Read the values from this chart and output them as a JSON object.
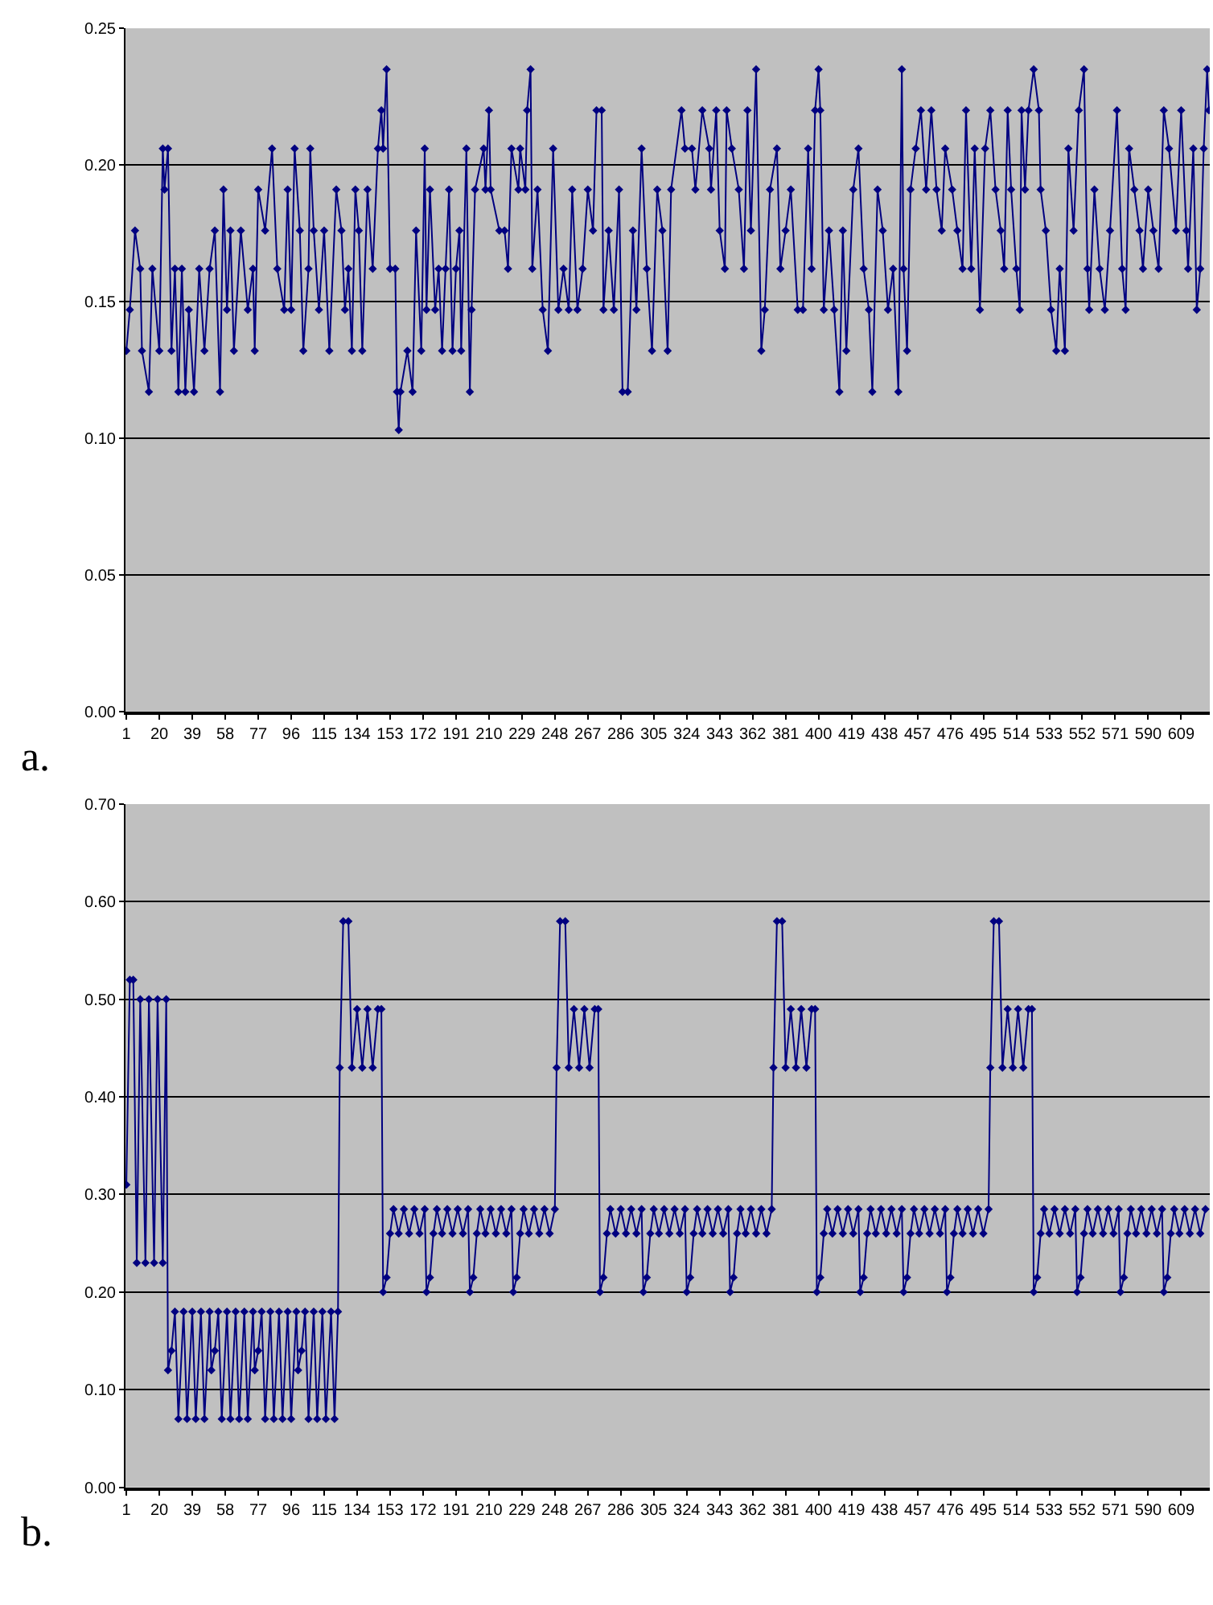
{
  "chart_data": [
    {
      "type": "line",
      "marker": "diamond",
      "grid": "y",
      "annotations": [
        "a."
      ],
      "xlim": [
        0.5,
        625.5
      ],
      "xticks": [
        1,
        20,
        39,
        58,
        77,
        96,
        115,
        134,
        153,
        172,
        191,
        210,
        229,
        248,
        267,
        286,
        305,
        324,
        343,
        362,
        381,
        400,
        419,
        438,
        457,
        476,
        495,
        514,
        533,
        552,
        571,
        590,
        609
      ],
      "ylim": [
        0,
        0.25
      ],
      "yticks": [
        {
          "value": 0,
          "label": "0.00"
        },
        {
          "value": 0.05,
          "label": "0.05"
        },
        {
          "value": 0.1,
          "label": "0.10"
        },
        {
          "value": 0.15,
          "label": "0.15"
        },
        {
          "value": 0.2,
          "label": "0.20"
        },
        {
          "value": 0.25,
          "label": "0.25"
        }
      ],
      "x": [
        1,
        3,
        6,
        9,
        10,
        14,
        16,
        20,
        22,
        23,
        25,
        27,
        29,
        31,
        33,
        35,
        37,
        40,
        43,
        46,
        49,
        52,
        55,
        57,
        59,
        61,
        63,
        67,
        71,
        74,
        75,
        77,
        81,
        85,
        88,
        92,
        94,
        96,
        98,
        101,
        103,
        106,
        107,
        109,
        112,
        115,
        118,
        122,
        125,
        127,
        129,
        131,
        133,
        135,
        137,
        140,
        143,
        146,
        148,
        149,
        151,
        153,
        156,
        157,
        158,
        159,
        163,
        166,
        168,
        171,
        173,
        174,
        176,
        179,
        181,
        183,
        185,
        187,
        189,
        191,
        193,
        194,
        197,
        199,
        200,
        202,
        207,
        208,
        210,
        211,
        216,
        219,
        221,
        223,
        227,
        228,
        231,
        232,
        234,
        235,
        238,
        241,
        244,
        247,
        250,
        253,
        256,
        258,
        261,
        264,
        267,
        270,
        272,
        275,
        276,
        279,
        282,
        285,
        287,
        290,
        293,
        295,
        298,
        301,
        304,
        307,
        310,
        313,
        315,
        321,
        323,
        327,
        329,
        333,
        337,
        338,
        341,
        343,
        346,
        347,
        350,
        354,
        357,
        359,
        361,
        364,
        367,
        369,
        372,
        376,
        378,
        381,
        384,
        388,
        391,
        394,
        396,
        398,
        400,
        401,
        403,
        406,
        409,
        412,
        414,
        416,
        420,
        423,
        426,
        429,
        431,
        434,
        437,
        440,
        443,
        446,
        448,
        449,
        451,
        453,
        456,
        459,
        462,
        465,
        468,
        471,
        473,
        477,
        480,
        483,
        485,
        488,
        490,
        493,
        496,
        499,
        502,
        505,
        507,
        509,
        511,
        514,
        516,
        517,
        519,
        521,
        524,
        527,
        528,
        531,
        534,
        537,
        539,
        542,
        544,
        547,
        550,
        553,
        555,
        556,
        559,
        562,
        565,
        568,
        572,
        575,
        577,
        579,
        582,
        585,
        587,
        590,
        593,
        596,
        599,
        602,
        606,
        609,
        612,
        613,
        616,
        618,
        620,
        622,
        624,
        625
      ],
      "series": [
        {
          "color": "#000080",
          "values": [
            0.132,
            0.147,
            0.176,
            0.162,
            0.132,
            0.117,
            0.162,
            0.132,
            0.206,
            0.191,
            0.206,
            0.132,
            0.162,
            0.117,
            0.162,
            0.117,
            0.147,
            0.117,
            0.162,
            0.132,
            0.162,
            0.176,
            0.117,
            0.191,
            0.147,
            0.176,
            0.132,
            0.176,
            0.147,
            0.162,
            0.132,
            0.191,
            0.176,
            0.206,
            0.162,
            0.147,
            0.191,
            0.147,
            0.206,
            0.176,
            0.132,
            0.162,
            0.206,
            0.176,
            0.147,
            0.176,
            0.132,
            0.191,
            0.176,
            0.147,
            0.162,
            0.132,
            0.191,
            0.176,
            0.132,
            0.191,
            0.162,
            0.206,
            0.22,
            0.206,
            0.235,
            0.162,
            0.162,
            0.117,
            0.103,
            0.117,
            0.132,
            0.117,
            0.176,
            0.132,
            0.206,
            0.147,
            0.191,
            0.147,
            0.162,
            0.132,
            0.162,
            0.191,
            0.132,
            0.162,
            0.176,
            0.132,
            0.206,
            0.117,
            0.147,
            0.191,
            0.206,
            0.191,
            0.22,
            0.191,
            0.176,
            0.176,
            0.162,
            0.206,
            0.191,
            0.206,
            0.191,
            0.22,
            0.235,
            0.162,
            0.191,
            0.147,
            0.132,
            0.206,
            0.147,
            0.162,
            0.147,
            0.191,
            0.147,
            0.162,
            0.191,
            0.176,
            0.22,
            0.22,
            0.147,
            0.176,
            0.147,
            0.191,
            0.117,
            0.117,
            0.176,
            0.147,
            0.206,
            0.162,
            0.132,
            0.191,
            0.176,
            0.132,
            0.191,
            0.22,
            0.206,
            0.206,
            0.191,
            0.22,
            0.206,
            0.191,
            0.22,
            0.176,
            0.162,
            0.22,
            0.206,
            0.191,
            0.162,
            0.22,
            0.176,
            0.235,
            0.132,
            0.147,
            0.191,
            0.206,
            0.162,
            0.176,
            0.191,
            0.147,
            0.147,
            0.206,
            0.162,
            0.22,
            0.235,
            0.22,
            0.147,
            0.176,
            0.147,
            0.117,
            0.176,
            0.132,
            0.191,
            0.206,
            0.162,
            0.147,
            0.117,
            0.191,
            0.176,
            0.147,
            0.162,
            0.117,
            0.235,
            0.162,
            0.132,
            0.191,
            0.206,
            0.22,
            0.191,
            0.22,
            0.191,
            0.176,
            0.206,
            0.191,
            0.176,
            0.162,
            0.22,
            0.162,
            0.206,
            0.147,
            0.206,
            0.22,
            0.191,
            0.176,
            0.162,
            0.22,
            0.191,
            0.162,
            0.147,
            0.22,
            0.191,
            0.22,
            0.235,
            0.22,
            0.191,
            0.176,
            0.147,
            0.132,
            0.162,
            0.132,
            0.206,
            0.176,
            0.22,
            0.235,
            0.162,
            0.147,
            0.191,
            0.162,
            0.147,
            0.176,
            0.22,
            0.162,
            0.147,
            0.206,
            0.191,
            0.176,
            0.162,
            0.191,
            0.176,
            0.162,
            0.22,
            0.206,
            0.176,
            0.22,
            0.176,
            0.162,
            0.206,
            0.147,
            0.162,
            0.206,
            0.235,
            0.22
          ]
        }
      ]
    },
    {
      "type": "line",
      "marker": "diamond",
      "grid": "y",
      "annotations": [
        "b."
      ],
      "xlim": [
        0.5,
        625.5
      ],
      "xticks": [
        1,
        20,
        39,
        58,
        77,
        96,
        115,
        134,
        153,
        172,
        191,
        210,
        229,
        248,
        267,
        286,
        305,
        324,
        343,
        362,
        381,
        400,
        419,
        438,
        457,
        476,
        495,
        514,
        533,
        552,
        571,
        590,
        609
      ],
      "ylim": [
        0,
        0.7
      ],
      "yticks": [
        {
          "value": 0,
          "label": "0.00"
        },
        {
          "value": 0.1,
          "label": "0.10"
        },
        {
          "value": 0.2,
          "label": "0.20"
        },
        {
          "value": 0.3,
          "label": "0.30"
        },
        {
          "value": 0.4,
          "label": "0.40"
        },
        {
          "value": 0.5,
          "label": "0.50"
        },
        {
          "value": 0.6,
          "label": "0.60"
        },
        {
          "value": 0.7,
          "label": "0.70"
        }
      ],
      "x": [
        1,
        3,
        5,
        7,
        9,
        12,
        14,
        17,
        19,
        22,
        24,
        25,
        27,
        29,
        31,
        34,
        36,
        39,
        41,
        44,
        46,
        49,
        50,
        52,
        54,
        56,
        59,
        61,
        64,
        66,
        69,
        71,
        74,
        75,
        77,
        79,
        81,
        84,
        86,
        89,
        91,
        94,
        96,
        99,
        100,
        102,
        104,
        106,
        109,
        111,
        114,
        116,
        119,
        121,
        123,
        124,
        126,
        129,
        131,
        134,
        137,
        140,
        143,
        146,
        148,
        149,
        151,
        153,
        155,
        158,
        161,
        164,
        167,
        170,
        173,
        174,
        176,
        178,
        180,
        183,
        186,
        189,
        192,
        195,
        198,
        199,
        201,
        203,
        205,
        208,
        211,
        214,
        217,
        220,
        223,
        224,
        226,
        228,
        230,
        233,
        236,
        239,
        242,
        245,
        248,
        249,
        251,
        254,
        256,
        259,
        262,
        265,
        268,
        271,
        273,
        274,
        276,
        278,
        280,
        283,
        286,
        289,
        292,
        295,
        298,
        299,
        301,
        303,
        305,
        308,
        311,
        314,
        317,
        320,
        323,
        324,
        326,
        328,
        330,
        333,
        336,
        339,
        342,
        345,
        348,
        349,
        351,
        353,
        355,
        358,
        361,
        364,
        367,
        370,
        373,
        374,
        376,
        379,
        381,
        384,
        387,
        390,
        393,
        396,
        398,
        399,
        401,
        403,
        405,
        408,
        411,
        414,
        417,
        420,
        423,
        424,
        426,
        428,
        430,
        433,
        436,
        439,
        442,
        445,
        448,
        449,
        451,
        453,
        455,
        458,
        461,
        464,
        467,
        470,
        473,
        474,
        476,
        478,
        480,
        483,
        486,
        489,
        492,
        495,
        498,
        499,
        501,
        504,
        506,
        509,
        512,
        515,
        518,
        521,
        523,
        524,
        526,
        528,
        530,
        533,
        536,
        539,
        542,
        545,
        548,
        549,
        551,
        553,
        555,
        558,
        561,
        564,
        567,
        570,
        573,
        574,
        576,
        578,
        580,
        583,
        586,
        589,
        592,
        595,
        598,
        599,
        601,
        603,
        605,
        608,
        611,
        614,
        617,
        620,
        623
      ],
      "series": [
        {
          "color": "#000080",
          "values": [
            0.31,
            0.52,
            0.52,
            0.23,
            0.5,
            0.23,
            0.5,
            0.23,
            0.5,
            0.23,
            0.5,
            0.12,
            0.14,
            0.18,
            0.07,
            0.18,
            0.07,
            0.18,
            0.07,
            0.18,
            0.07,
            0.18,
            0.12,
            0.14,
            0.18,
            0.07,
            0.18,
            0.07,
            0.18,
            0.07,
            0.18,
            0.07,
            0.18,
            0.12,
            0.14,
            0.18,
            0.07,
            0.18,
            0.07,
            0.18,
            0.07,
            0.18,
            0.07,
            0.18,
            0.12,
            0.14,
            0.18,
            0.07,
            0.18,
            0.07,
            0.18,
            0.07,
            0.18,
            0.07,
            0.18,
            0.43,
            0.58,
            0.58,
            0.43,
            0.49,
            0.43,
            0.49,
            0.43,
            0.49,
            0.49,
            0.2,
            0.215,
            0.26,
            0.285,
            0.26,
            0.285,
            0.26,
            0.285,
            0.26,
            0.285,
            0.2,
            0.215,
            0.26,
            0.285,
            0.26,
            0.285,
            0.26,
            0.285,
            0.26,
            0.285,
            0.2,
            0.215,
            0.26,
            0.285,
            0.26,
            0.285,
            0.26,
            0.285,
            0.26,
            0.285,
            0.2,
            0.215,
            0.26,
            0.285,
            0.26,
            0.285,
            0.26,
            0.285,
            0.26,
            0.285,
            0.43,
            0.58,
            0.58,
            0.43,
            0.49,
            0.43,
            0.49,
            0.43,
            0.49,
            0.49,
            0.2,
            0.215,
            0.26,
            0.285,
            0.26,
            0.285,
            0.26,
            0.285,
            0.26,
            0.285,
            0.2,
            0.215,
            0.26,
            0.285,
            0.26,
            0.285,
            0.26,
            0.285,
            0.26,
            0.285,
            0.2,
            0.215,
            0.26,
            0.285,
            0.26,
            0.285,
            0.26,
            0.285,
            0.26,
            0.285,
            0.2,
            0.215,
            0.26,
            0.285,
            0.26,
            0.285,
            0.26,
            0.285,
            0.26,
            0.285,
            0.43,
            0.58,
            0.58,
            0.43,
            0.49,
            0.43,
            0.49,
            0.43,
            0.49,
            0.49,
            0.2,
            0.215,
            0.26,
            0.285,
            0.26,
            0.285,
            0.26,
            0.285,
            0.26,
            0.285,
            0.2,
            0.215,
            0.26,
            0.285,
            0.26,
            0.285,
            0.26,
            0.285,
            0.26,
            0.285,
            0.2,
            0.215,
            0.26,
            0.285,
            0.26,
            0.285,
            0.26,
            0.285,
            0.26,
            0.285,
            0.2,
            0.215,
            0.26,
            0.285,
            0.26,
            0.285,
            0.26,
            0.285,
            0.26,
            0.285,
            0.43,
            0.58,
            0.58,
            0.43,
            0.49,
            0.43,
            0.49,
            0.43,
            0.49,
            0.49,
            0.2,
            0.215,
            0.26,
            0.285,
            0.26,
            0.285,
            0.26,
            0.285,
            0.26,
            0.285,
            0.2,
            0.215,
            0.26,
            0.285,
            0.26,
            0.285,
            0.26,
            0.285,
            0.26,
            0.285,
            0.2,
            0.215,
            0.26,
            0.285,
            0.26,
            0.285,
            0.26,
            0.285,
            0.26,
            0.285,
            0.2,
            0.215,
            0.26,
            0.285,
            0.26,
            0.285,
            0.26,
            0.285,
            0.26,
            0.285
          ]
        }
      ]
    }
  ]
}
